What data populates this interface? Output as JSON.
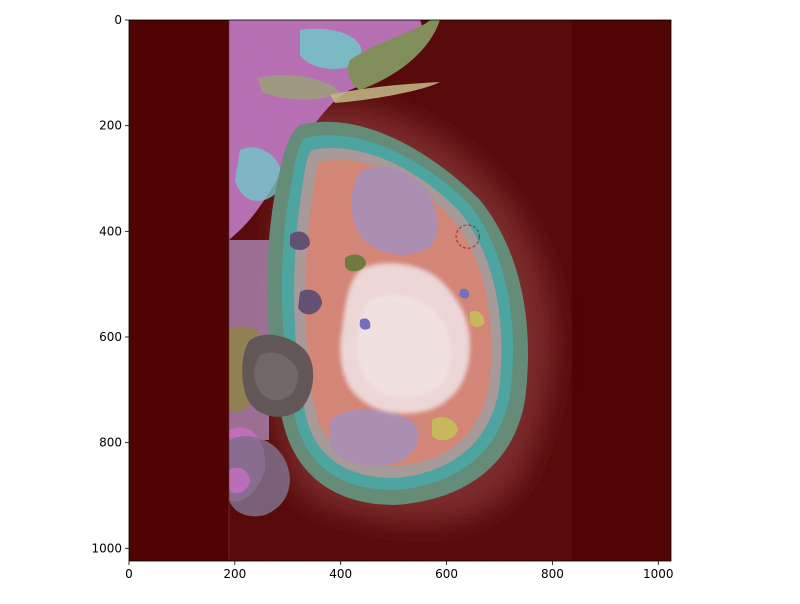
{
  "image": {
    "description_free": true,
    "axes": {
      "x_ticks": [
        "0",
        "200",
        "400",
        "600",
        "800",
        "1000"
      ],
      "y_ticks": [
        "0",
        "200",
        "400",
        "600",
        "800",
        "1000"
      ],
      "xlim": [
        0,
        1024
      ],
      "ylim": [
        0,
        1024
      ],
      "y_inverted": true
    },
    "colors": {
      "background": "#520404",
      "tissue_outer": "#5f8d78",
      "tissue_mid": "#d58777",
      "dense_pink": "#f0dcdc",
      "lavender": "#aa8fb5",
      "magenta": "#c86fc8",
      "cyan": "#66c9c9",
      "olive": "#8a8a3c"
    },
    "marker": {
      "type": "dashed-circle",
      "color": "#aa2222",
      "center_data": [
        640,
        410
      ],
      "radius_data": 22
    }
  }
}
